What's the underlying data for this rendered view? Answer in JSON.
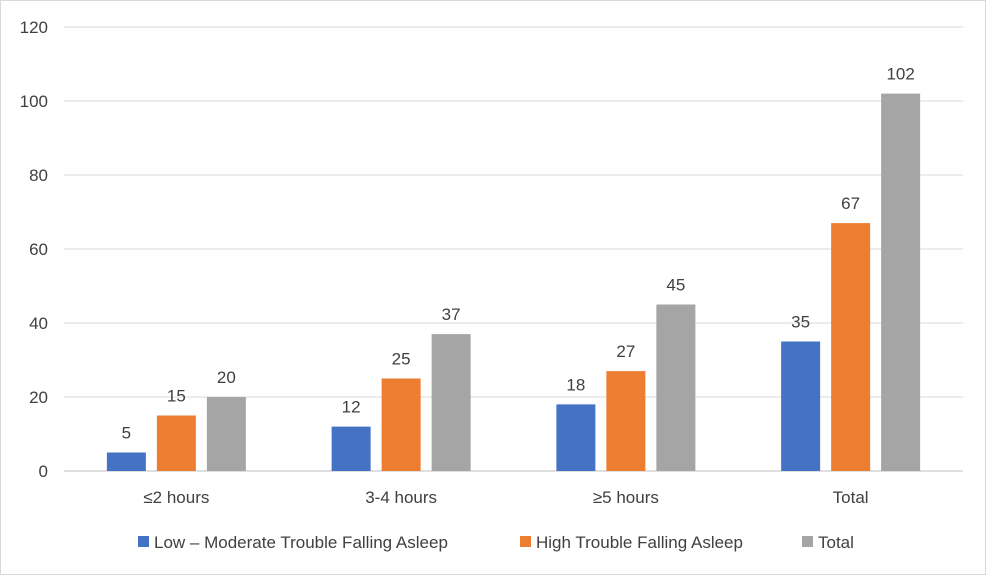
{
  "chart_data": {
    "type": "bar",
    "title": "",
    "xlabel": "",
    "ylabel": "",
    "ylim": [
      0,
      120
    ],
    "yticks": [
      0,
      20,
      40,
      60,
      80,
      100,
      120
    ],
    "grid": true,
    "legend_position": "bottom",
    "categories": [
      "≤2 hours",
      "3-4 hours",
      "≥5 hours",
      "Total"
    ],
    "series": [
      {
        "name": "Low – Moderate Trouble Falling Asleep",
        "color": "#4472C4",
        "values": [
          5,
          12,
          18,
          35
        ]
      },
      {
        "name": "High Trouble Falling Asleep",
        "color": "#ED7D31",
        "values": [
          15,
          25,
          27,
          67
        ]
      },
      {
        "name": "Total",
        "color": "#A5A5A5",
        "values": [
          20,
          37,
          45,
          102
        ]
      }
    ]
  }
}
